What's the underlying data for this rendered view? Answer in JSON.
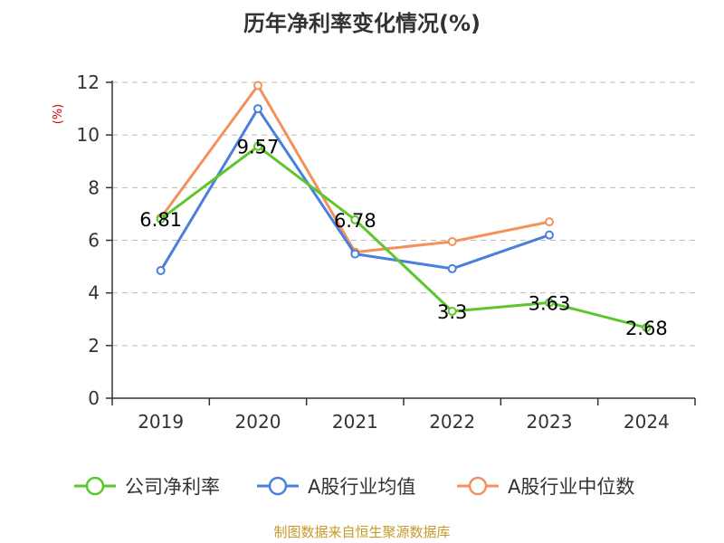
{
  "chart_data": {
    "type": "line",
    "title": "历年净利率变化情况(%)",
    "ylabel": "(%)",
    "xlabel": "",
    "ylim": [
      0,
      12
    ],
    "y_ticks": [
      0,
      2,
      4,
      6,
      8,
      10,
      12
    ],
    "grid": true,
    "legend_position": "bottom",
    "categories": [
      "2019",
      "2020",
      "2021",
      "2022",
      "2023",
      "2024"
    ],
    "series": [
      {
        "name": "公司净利率",
        "color": "#5cc62c",
        "values": [
          6.81,
          9.57,
          6.78,
          3.3,
          3.63,
          2.68
        ],
        "labels": [
          "6.81",
          "9.57",
          "6.78",
          "3.3",
          "3.63",
          "2.68"
        ]
      },
      {
        "name": "A股行业均值",
        "color": "#4b7fdc",
        "values": [
          4.85,
          11.0,
          5.48,
          4.92,
          6.2,
          null
        ]
      },
      {
        "name": "A股行业中位数",
        "color": "#f4905a",
        "values": [
          6.85,
          11.88,
          5.55,
          5.95,
          6.7,
          null
        ]
      }
    ]
  },
  "source": "制图数据来自恒生聚源数据库"
}
